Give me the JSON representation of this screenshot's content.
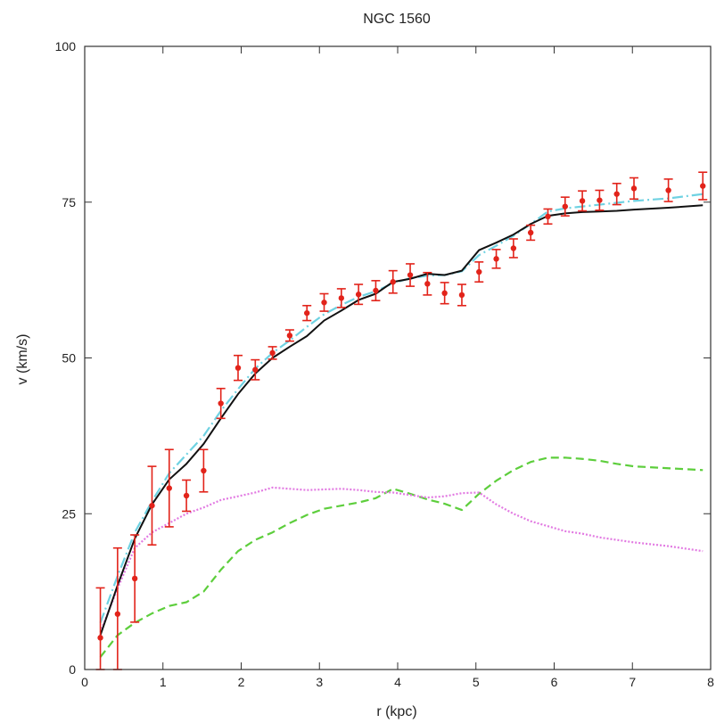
{
  "chart_data": {
    "type": "line",
    "title": "NGC 1560",
    "xlabel": "r (kpc)",
    "ylabel": "v (km/s)",
    "xlim": [
      0,
      8
    ],
    "ylim": [
      0,
      100
    ],
    "xticks": [
      "0",
      "1",
      "2",
      "3",
      "4",
      "5",
      "6",
      "7",
      "8"
    ],
    "yticks": [
      "0",
      "25",
      "50",
      "75",
      "100"
    ],
    "grid": false,
    "legend": "none",
    "series": [
      {
        "style": "errorbar-points",
        "color": "#e2231a",
        "points": [
          {
            "x": 0.2,
            "y": 5.1,
            "err": 8
          },
          {
            "x": 0.42,
            "y": 8.9,
            "err": 10.6
          },
          {
            "x": 0.64,
            "y": 14.6,
            "err": 7
          },
          {
            "x": 0.86,
            "y": 26.3,
            "err": 6.3
          },
          {
            "x": 1.08,
            "y": 29.1,
            "err": 6.2
          },
          {
            "x": 1.3,
            "y": 27.9,
            "err": 2.5
          },
          {
            "x": 1.52,
            "y": 31.9,
            "err": 3.4
          },
          {
            "x": 1.74,
            "y": 42.7,
            "err": 2.4
          },
          {
            "x": 1.96,
            "y": 48.4,
            "err": 2
          },
          {
            "x": 2.18,
            "y": 48.1,
            "err": 1.6
          },
          {
            "x": 2.4,
            "y": 50.8,
            "err": 1
          },
          {
            "x": 2.62,
            "y": 53.6,
            "err": 0.9
          },
          {
            "x": 2.84,
            "y": 57.2,
            "err": 1.2
          },
          {
            "x": 3.06,
            "y": 58.9,
            "err": 1.4
          },
          {
            "x": 3.28,
            "y": 59.6,
            "err": 1.5
          },
          {
            "x": 3.5,
            "y": 60.2,
            "err": 1.6
          },
          {
            "x": 3.72,
            "y": 60.8,
            "err": 1.6
          },
          {
            "x": 3.94,
            "y": 62.2,
            "err": 1.8
          },
          {
            "x": 4.16,
            "y": 63.3,
            "err": 1.8
          },
          {
            "x": 4.38,
            "y": 61.9,
            "err": 1.8
          },
          {
            "x": 4.6,
            "y": 60.4,
            "err": 1.7
          },
          {
            "x": 4.82,
            "y": 60.1,
            "err": 1.7
          },
          {
            "x": 5.04,
            "y": 63.8,
            "err": 1.6
          },
          {
            "x": 5.26,
            "y": 65.9,
            "err": 1.5
          },
          {
            "x": 5.48,
            "y": 67.6,
            "err": 1.5
          },
          {
            "x": 5.7,
            "y": 70.1,
            "err": 1.2
          },
          {
            "x": 5.92,
            "y": 72.7,
            "err": 1.2
          },
          {
            "x": 6.14,
            "y": 74.3,
            "err": 1.5
          },
          {
            "x": 6.36,
            "y": 75.2,
            "err": 1.6
          },
          {
            "x": 6.58,
            "y": 75.3,
            "err": 1.6
          },
          {
            "x": 6.8,
            "y": 76.3,
            "err": 1.7
          },
          {
            "x": 7.02,
            "y": 77.2,
            "err": 1.7
          },
          {
            "x": 7.46,
            "y": 76.9,
            "err": 1.8
          },
          {
            "x": 7.9,
            "y": 77.6,
            "err": 2.2
          }
        ]
      },
      {
        "style": "solid",
        "color": "#111111",
        "x": [
          0.2,
          0.42,
          0.64,
          0.86,
          1.08,
          1.3,
          1.52,
          1.74,
          1.96,
          2.18,
          2.4,
          2.62,
          2.84,
          3.06,
          3.28,
          3.5,
          3.72,
          3.94,
          4.16,
          4.38,
          4.6,
          4.82,
          5.04,
          5.26,
          5.48,
          5.7,
          5.92,
          6.14,
          6.36,
          6.58,
          6.8,
          7.02,
          7.46,
          7.9
        ],
        "y": [
          5.5,
          13.5,
          21,
          26.5,
          30.5,
          33,
          36.2,
          40.3,
          44.2,
          47.5,
          50,
          51.8,
          53.5,
          56,
          57.6,
          59.3,
          60.3,
          62.2,
          62.7,
          63.5,
          63.3,
          64,
          67.3,
          68.5,
          69.8,
          71.5,
          72.8,
          73.2,
          73.4,
          73.5,
          73.6,
          73.8,
          74.1,
          74.5
        ]
      },
      {
        "style": "dash-dot",
        "color": "#6fd2e2",
        "x": [
          0.2,
          0.42,
          0.64,
          0.86,
          1.08,
          1.3,
          1.52,
          1.74,
          1.96,
          2.18,
          2.4,
          2.62,
          2.84,
          3.06,
          3.28,
          3.5,
          3.72,
          3.94,
          4.16,
          4.38,
          4.6,
          4.82,
          5.04,
          5.26,
          5.48,
          5.7,
          5.92,
          6.14,
          6.36,
          6.58,
          6.8,
          7.02,
          7.46,
          7.9
        ],
        "y": [
          7.5,
          15,
          22,
          27,
          31.5,
          34.5,
          37.5,
          41.5,
          45,
          48.3,
          50.8,
          52.8,
          55,
          57,
          58.5,
          59.8,
          60.7,
          62,
          62.8,
          63.2,
          63.3,
          63.9,
          66.5,
          68,
          69.6,
          71.5,
          73.5,
          74,
          74.3,
          74.6,
          74.9,
          75.2,
          75.6,
          76.3
        ]
      },
      {
        "style": "dotted",
        "color": "#e27ae2",
        "x": [
          0.2,
          0.42,
          0.64,
          0.86,
          1.08,
          1.3,
          1.52,
          1.74,
          1.96,
          2.18,
          2.4,
          2.62,
          2.84,
          3.06,
          3.28,
          3.5,
          3.72,
          3.94,
          4.16,
          4.38,
          4.6,
          4.82,
          5.04,
          5.26,
          5.48,
          5.7,
          5.92,
          6.14,
          6.36,
          6.58,
          6.8,
          7.02,
          7.46,
          7.9
        ],
        "y": [
          6,
          13,
          19.5,
          22,
          23.5,
          25,
          26,
          27.2,
          27.8,
          28.4,
          29.2,
          29,
          28.8,
          28.9,
          29,
          28.8,
          28.5,
          28.4,
          28,
          27.6,
          27.8,
          28.3,
          28.4,
          26.5,
          25,
          23.8,
          23,
          22.2,
          21.8,
          21.2,
          20.8,
          20.4,
          19.8,
          19
        ]
      },
      {
        "style": "dashed",
        "color": "#5dce3c",
        "x": [
          0.2,
          0.42,
          0.64,
          0.86,
          1.08,
          1.3,
          1.52,
          1.74,
          1.96,
          2.18,
          2.4,
          2.62,
          2.84,
          3.06,
          3.28,
          3.5,
          3.72,
          3.94,
          4.16,
          4.38,
          4.6,
          4.82,
          5.04,
          5.26,
          5.48,
          5.7,
          5.92,
          6.14,
          6.36,
          6.58,
          6.8,
          7.02,
          7.46,
          7.9
        ],
        "y": [
          2,
          5.5,
          7.5,
          9,
          10.2,
          10.8,
          12.5,
          16,
          19,
          20.8,
          22,
          23.5,
          24.8,
          25.8,
          26.3,
          26.8,
          27.5,
          29,
          28.2,
          27.3,
          26.6,
          25.6,
          28.2,
          30.3,
          32,
          33.3,
          34,
          34,
          33.8,
          33.5,
          33,
          32.6,
          32.3,
          32
        ]
      }
    ]
  }
}
